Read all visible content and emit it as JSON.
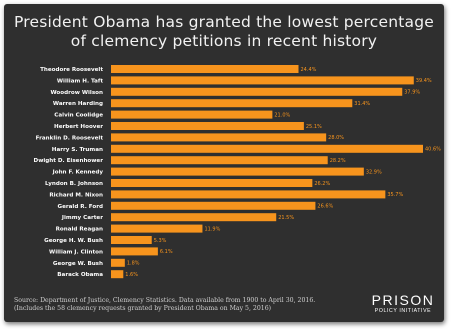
{
  "title_line1": "President Obama has granted the lowest percentage",
  "title_line2": "of clemency petitions in recent history",
  "source_line1": "Source: Department of Justice, Clemency Statistics. Data available from 1900 to April 30, 2016.",
  "source_line2": "(Includes the 58 clemency requests granted by President Obama on May 5, 2016)",
  "logo_main": "PRISON",
  "logo_sub": "POLICY INITIATIVE",
  "colors": {
    "background": "#2f2f2f",
    "bar": "#f7941d",
    "text": "#ffffff"
  },
  "chart_data": {
    "type": "bar",
    "orientation": "horizontal",
    "title": "President Obama has granted the lowest percentage of clemency petitions in recent history",
    "categories": [
      "Theodore Roosevelt",
      "William H. Taft",
      "Woodrow Wilson",
      "Warren Harding",
      "Calvin Coolidge",
      "Herbert Hoover",
      "Franklin D. Roosevelt",
      "Harry S. Truman",
      "Dwight D. Eisenhower",
      "John F. Kennedy",
      "Lyndon B. Johnson",
      "Richard M. Nixon",
      "Gerald R. Ford",
      "Jimmy Carter",
      "Ronald Reagan",
      "George H. W. Bush",
      "William J. Clinton",
      "George W. Bush",
      "Barack Obama"
    ],
    "values": [
      24.4,
      39.4,
      37.9,
      31.4,
      21.0,
      25.1,
      28.0,
      40.6,
      28.2,
      32.9,
      26.2,
      35.7,
      26.6,
      21.5,
      11.9,
      5.3,
      6.1,
      1.8,
      1.6
    ],
    "value_labels": [
      "24.4%",
      "39.4%",
      "37.9%",
      "31.4%",
      "21.0%",
      "25.1%",
      "28.0%",
      "40.6%",
      "28.2%",
      "32.9%",
      "26.2%",
      "35.7%",
      "26.6%",
      "21.5%",
      "11.9%",
      "5.3%",
      "6.1%",
      "1.8%",
      "1.6%"
    ],
    "xlim": [
      0,
      40.6
    ],
    "grid": false,
    "legend": "none"
  }
}
